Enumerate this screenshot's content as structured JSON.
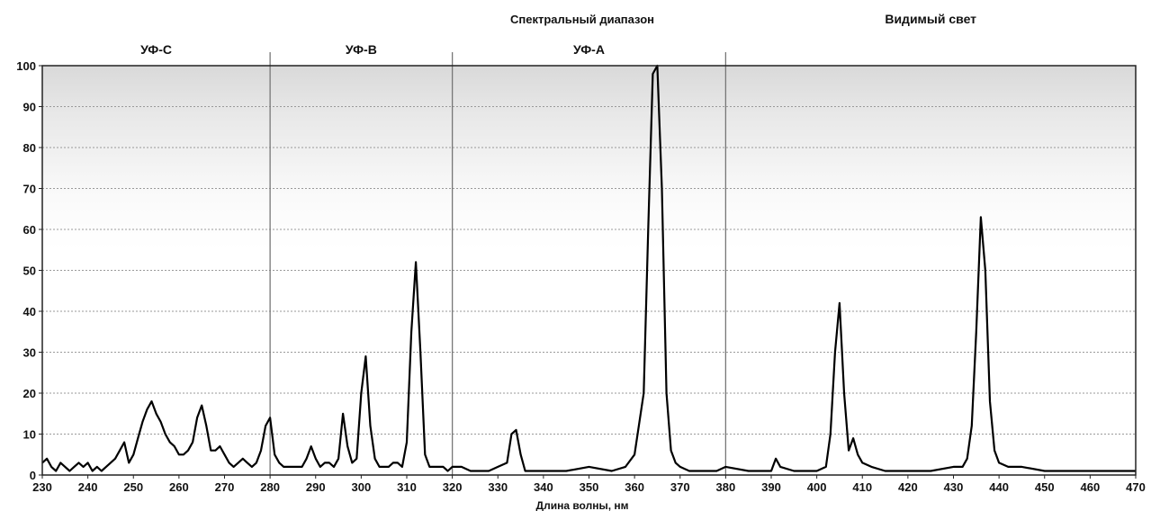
{
  "chart_data": {
    "type": "line",
    "title": "Спектральный диапазон",
    "xlabel": "Длина волны, нм",
    "ylabel": "",
    "xlim": [
      230,
      470
    ],
    "ylim": [
      0,
      100
    ],
    "x_ticks": [
      "230",
      "240",
      "250",
      "260",
      "270",
      "280",
      "290",
      "300",
      "310",
      "320",
      "330",
      "340",
      "350",
      "360",
      "370",
      "380",
      "390",
      "400",
      "410",
      "420",
      "430",
      "440",
      "450",
      "460",
      "470"
    ],
    "y_ticks": [
      "0",
      "10",
      "20",
      "30",
      "40",
      "50",
      "60",
      "70",
      "80",
      "90",
      "100"
    ],
    "grid": "horizontal dashed",
    "regions": [
      {
        "label": "УФ-C",
        "from": 230,
        "to": 280
      },
      {
        "label": "УФ-B",
        "from": 280,
        "to": 320
      },
      {
        "label": "УФ-A",
        "from": 320,
        "to": 380
      },
      {
        "label": "Видимый свет",
        "from": 380,
        "to": 470
      }
    ],
    "region_boundaries": [
      280,
      320,
      380
    ],
    "series": [
      {
        "x": [
          230,
          231,
          232,
          233,
          234,
          235,
          236,
          237,
          238,
          239,
          240,
          241,
          242,
          243,
          244,
          245,
          246,
          247,
          248,
          249,
          250,
          251,
          252,
          253,
          254,
          255,
          256,
          257,
          258,
          259,
          260,
          261,
          262,
          263,
          264,
          265,
          266,
          267,
          268,
          269,
          270,
          271,
          272,
          273,
          274,
          275,
          276,
          277,
          278,
          279,
          280,
          281,
          282,
          283,
          284,
          285,
          286,
          287,
          288,
          289,
          290,
          291,
          292,
          293,
          294,
          295,
          296,
          297,
          298,
          299,
          300,
          301,
          302,
          303,
          304,
          305,
          306,
          307,
          308,
          309,
          310,
          311,
          312,
          313,
          314,
          315,
          316,
          317,
          318,
          319,
          320,
          322,
          324,
          326,
          328,
          330,
          332,
          333,
          334,
          335,
          336,
          338,
          340,
          345,
          350,
          355,
          358,
          360,
          362,
          363,
          364,
          365,
          366,
          367,
          368,
          369,
          370,
          372,
          375,
          378,
          380,
          385,
          388,
          390,
          391,
          392,
          395,
          400,
          402,
          403,
          404,
          405,
          406,
          407,
          408,
          409,
          410,
          412,
          415,
          420,
          425,
          430,
          432,
          433,
          434,
          435,
          436,
          437,
          438,
          439,
          440,
          442,
          445,
          450,
          455,
          460,
          465,
          470
        ],
        "y": [
          3,
          4,
          2,
          1,
          3,
          2,
          1,
          2,
          3,
          2,
          3,
          1,
          2,
          1,
          2,
          3,
          4,
          6,
          8,
          3,
          5,
          9,
          13,
          16,
          18,
          15,
          13,
          10,
          8,
          7,
          5,
          5,
          6,
          8,
          14,
          17,
          12,
          6,
          6,
          7,
          5,
          3,
          2,
          3,
          4,
          3,
          2,
          3,
          6,
          12,
          14,
          5,
          3,
          2,
          2,
          2,
          2,
          2,
          4,
          7,
          4,
          2,
          3,
          3,
          2,
          4,
          15,
          7,
          3,
          4,
          20,
          29,
          12,
          4,
          2,
          2,
          2,
          3,
          3,
          2,
          8,
          35,
          52,
          30,
          5,
          2,
          2,
          2,
          2,
          1,
          2,
          2,
          1,
          1,
          1,
          2,
          3,
          10,
          11,
          5,
          1,
          1,
          1,
          1,
          2,
          1,
          2,
          5,
          20,
          60,
          98,
          100,
          70,
          20,
          6,
          3,
          2,
          1,
          1,
          1,
          2,
          1,
          1,
          1,
          4,
          2,
          1,
          1,
          2,
          10,
          30,
          42,
          20,
          6,
          9,
          5,
          3,
          2,
          1,
          1,
          1,
          2,
          2,
          4,
          12,
          35,
          63,
          50,
          18,
          6,
          3,
          2,
          2,
          1,
          1,
          1,
          1,
          1
        ]
      }
    ]
  }
}
